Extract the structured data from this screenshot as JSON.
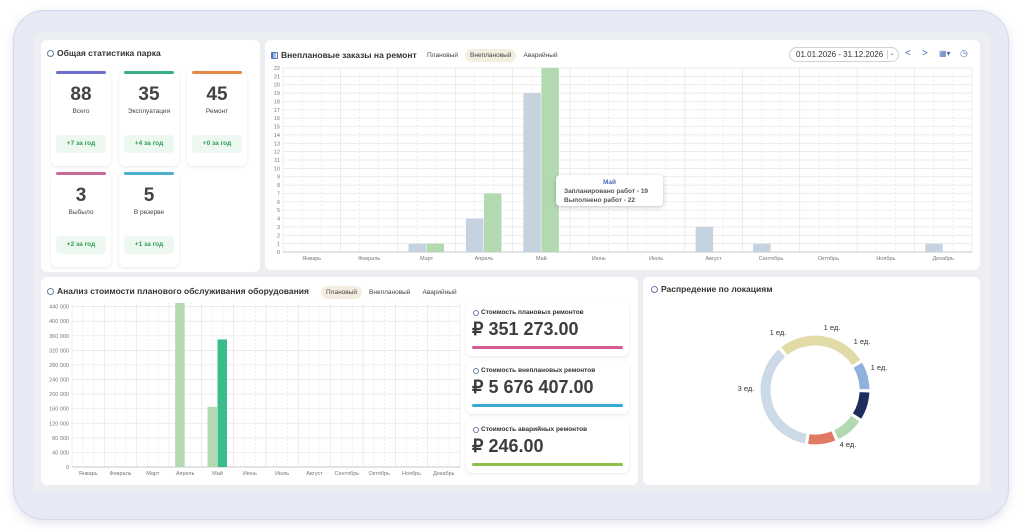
{
  "fleet": {
    "title": "Общая статистика парка",
    "stats": [
      {
        "value": "88",
        "label": "Всего",
        "delta": "+7 за год",
        "color": "#6c6fcb"
      },
      {
        "value": "35",
        "label": "Эксплуатация",
        "delta": "+4 за год",
        "color": "#3aae84"
      },
      {
        "value": "45",
        "label": "Ремонт",
        "delta": "+0 за год",
        "color": "#e28a4a"
      },
      {
        "value": "3",
        "label": "Выбыло",
        "delta": "+2 за год",
        "color": "#c76a9a"
      },
      {
        "value": "5",
        "label": "В резерве",
        "delta": "+1 за год",
        "color": "#4fb0cd"
      }
    ]
  },
  "orders": {
    "title": "Внеплановые заказы на ремонт",
    "tabs": [
      "Плановый",
      "Внеплановый",
      "Аварийный"
    ],
    "active_tab": 1,
    "date_range": "01.01.2026 - 31.12.2026",
    "tooltip": {
      "month": "Май",
      "line1": "Запланировано работ - 19",
      "line2": "Выполнено работ - 22"
    }
  },
  "cost_analysis": {
    "title": "Анализ стоимости планового обслуживания оборудования",
    "tabs": [
      "Плановый",
      "Внеплановый",
      "Аварийный"
    ],
    "active_tab": 0,
    "cards": [
      {
        "label": "Стоимость плановых ремонтов",
        "value": "₽ 351 273.00",
        "color": "#d45f95"
      },
      {
        "label": "Стоимость внеплановых ремонтов",
        "value": "₽ 5 676 407.00",
        "color": "#3aa8d4"
      },
      {
        "label": "Стоимость аварийных ремонтов",
        "value": "₽ 246.00",
        "color": "#8cc04a"
      }
    ]
  },
  "locations": {
    "title": "Распредение по локациям"
  },
  "chart_data": [
    {
      "type": "bar",
      "categories": [
        "Январь",
        "Февраль",
        "Март",
        "Апрель",
        "Май",
        "Июнь",
        "Июль",
        "Август",
        "Сентябрь",
        "Октябрь",
        "Ноябрь",
        "Декабрь"
      ],
      "series": [
        {
          "values": [
            0,
            0,
            1,
            4,
            19,
            0,
            0,
            3,
            1,
            0,
            0,
            1
          ],
          "color": "#c5d3e0"
        },
        {
          "values": [
            0,
            0,
            1,
            7,
            22,
            0,
            0,
            0,
            0,
            0,
            0,
            0
          ],
          "color": "#b3d9b0"
        }
      ],
      "yticks": [
        "0",
        "1",
        "2",
        "3",
        "4",
        "5",
        "6",
        "7",
        "8",
        "9",
        "10",
        "11",
        "12",
        "13",
        "14",
        "15",
        "16",
        "17",
        "18",
        "19",
        "20",
        "21",
        "22"
      ],
      "ylim": [
        0,
        22
      ]
    },
    {
      "type": "bar",
      "categories": [
        "Январь",
        "Февраль",
        "Март",
        "Апрель",
        "Май",
        "Июнь",
        "Июль",
        "Август",
        "Сентябрь",
        "Октябрь",
        "Ноябрь",
        "Декабрь"
      ],
      "series": [
        {
          "values": [
            0,
            0,
            0,
            450000,
            165000,
            0,
            0,
            0,
            0,
            0,
            0,
            0
          ],
          "color": "#b3d9b0"
        },
        {
          "values": [
            0,
            0,
            0,
            0,
            350000,
            0,
            0,
            0,
            0,
            0,
            0,
            0
          ],
          "color": "#3bbd8a"
        }
      ],
      "yticks": [
        "0",
        "40 000",
        "80 000",
        "120 000",
        "160 000",
        "200 000",
        "240 000",
        "280 000",
        "320 000",
        "360 000",
        "400 000",
        "440 000"
      ],
      "ylim": [
        0,
        450000
      ]
    },
    {
      "type": "pie",
      "slices": [
        {
          "label": "4 ед.",
          "value": 4,
          "color": "#ccd9e6"
        },
        {
          "label": "3 ед.",
          "value": 3,
          "color": "#e2dba8"
        },
        {
          "label": "1 ед.",
          "value": 1,
          "color": "#8fb2dc"
        },
        {
          "label": "1 ед.",
          "value": 1,
          "color": "#1e2d5c"
        },
        {
          "label": "1 ед.",
          "value": 1,
          "color": "#b3d9b0"
        },
        {
          "label": "1 ед.",
          "value": 1,
          "color": "#e07a65"
        }
      ]
    }
  ]
}
